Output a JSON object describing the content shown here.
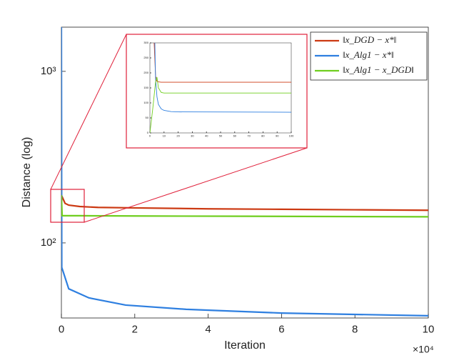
{
  "chart_data": [
    {
      "type": "line",
      "xlabel": "Iteration",
      "ylabel": "Distance (log)",
      "x_multiplier": "×10⁴",
      "xlim": [
        0,
        10
      ],
      "xticks": [
        0,
        2,
        4,
        6,
        8,
        10
      ],
      "ylim": [
        36.5,
        1810
      ],
      "yscale": "log",
      "yticks": [
        {
          "value": 100,
          "label": "10²"
        },
        {
          "value": 1000,
          "label": "10³"
        }
      ],
      "legend": "upper right",
      "series": [
        {
          "name": "‖x_DGD − x*‖",
          "color": "#cc3a13",
          "x": [
            0,
            0.1,
            0.2,
            0.5,
            1,
            2,
            4,
            6,
            8,
            10
          ],
          "values": [
            190,
            170,
            166,
            163,
            161,
            160,
            158,
            157,
            156,
            155
          ]
        },
        {
          "name": "‖x_Alg1 − x*‖",
          "color": "#2e7fe0",
          "x": [
            0,
            0.01,
            0.2,
            0.75,
            1.75,
            3.4,
            6,
            10
          ],
          "values": [
            1810,
            72,
            54,
            47.8,
            43.4,
            41,
            39,
            37.6
          ]
        },
        {
          "name": "‖x_Alg1 − x_DGD‖",
          "color": "#6fce1f",
          "x": [
            0,
            0.02,
            0.5,
            2,
            5,
            10
          ],
          "values": [
            190,
            144,
            144,
            143.5,
            143,
            142
          ]
        }
      ]
    },
    {
      "type": "line",
      "xlim": [
        0,
        100
      ],
      "xticks": [
        0,
        10,
        20,
        30,
        40,
        50,
        60,
        70,
        80,
        90,
        100
      ],
      "ylim": [
        0,
        300
      ],
      "yticks": [
        0,
        50,
        100,
        150,
        200,
        250,
        300
      ],
      "series": [
        {
          "color": "#cc3a13",
          "x": [
            3,
            4,
            5,
            6,
            8,
            10,
            100
          ],
          "values": [
            300,
            190,
            172,
            170,
            169,
            169,
            169
          ]
        },
        {
          "color": "#2e7fe0",
          "x": [
            3.5,
            4,
            5,
            6,
            8,
            10,
            15,
            20,
            100
          ],
          "values": [
            300,
            180,
            120,
            95,
            80,
            75,
            71,
            70,
            69
          ]
        },
        {
          "color": "#6fce1f",
          "x": [
            0,
            2,
            4,
            5,
            6,
            8,
            10,
            100
          ],
          "values": [
            0,
            80,
            170,
            186,
            150,
            135,
            133,
            133
          ]
        }
      ]
    }
  ]
}
